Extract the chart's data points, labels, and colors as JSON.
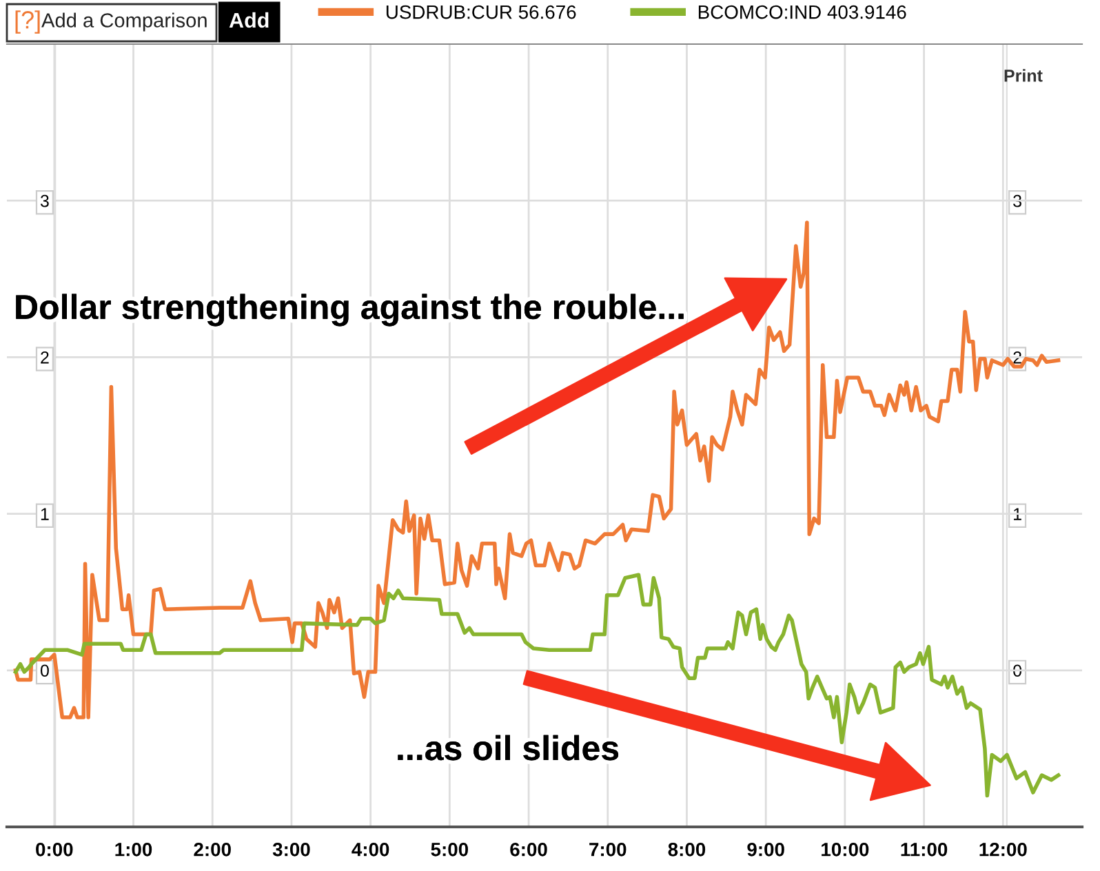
{
  "chart_data": {
    "type": "line",
    "annotations": [
      "[?]",
      "Add a Comparison",
      "Add",
      "Print",
      "Dollar strengthening against the rouble...",
      "...as oil slides"
    ],
    "series": [
      {
        "name": "USDRUB:CUR 56.676",
        "color": "#ef7a36",
        "x": [
          -0.49,
          -0.46,
          -0.3,
          -0.29,
          -0.06,
          0.0,
          0.1,
          0.2,
          0.25,
          0.29,
          0.37,
          0.39,
          0.43,
          0.48,
          0.57,
          0.67,
          0.72,
          0.78,
          0.86,
          0.92,
          0.94,
          1.0,
          1.22,
          1.26,
          1.34,
          1.4,
          2.09,
          2.38,
          2.48,
          2.54,
          2.61,
          2.96,
          3.01,
          3.04,
          3.13,
          3.19,
          3.3,
          3.34,
          3.39,
          3.45,
          3.48,
          3.54,
          3.59,
          3.64,
          3.74,
          3.79,
          3.86,
          3.92,
          3.97,
          4.06,
          4.1,
          4.17,
          4.28,
          4.35,
          4.41,
          4.45,
          4.49,
          4.55,
          4.58,
          4.63,
          4.68,
          4.73,
          4.78,
          4.87,
          4.94,
          5.06,
          5.1,
          5.15,
          5.22,
          5.28,
          5.36,
          5.41,
          5.57,
          5.59,
          5.62,
          5.7,
          5.76,
          5.8,
          5.91,
          5.97,
          6.03,
          6.09,
          6.2,
          6.26,
          6.38,
          6.43,
          6.52,
          6.58,
          6.64,
          6.72,
          6.84,
          6.96,
          7.07,
          7.19,
          7.23,
          7.3,
          7.51,
          7.57,
          7.65,
          7.71,
          7.8,
          7.84,
          7.88,
          7.94,
          8.0,
          8.12,
          8.17,
          8.22,
          8.28,
          8.32,
          8.38,
          8.45,
          8.55,
          8.58,
          8.64,
          8.7,
          8.75,
          8.87,
          8.92,
          8.99,
          9.04,
          9.1,
          9.18,
          9.23,
          9.3,
          9.38,
          9.44,
          9.48,
          9.52,
          9.55,
          9.61,
          9.67,
          9.72,
          9.77,
          9.86,
          9.9,
          9.94,
          10.03,
          10.17,
          10.23,
          10.32,
          10.38,
          10.46,
          10.5,
          10.56,
          10.64,
          10.7,
          10.75,
          10.78,
          10.84,
          10.9,
          10.96,
          11.03,
          11.07,
          11.18,
          11.22,
          11.3,
          11.35,
          11.42,
          11.46,
          11.52,
          11.57,
          11.62,
          11.66,
          11.71,
          11.77,
          11.8,
          11.86,
          12.0,
          12.06,
          12.14,
          12.23,
          12.29,
          12.38,
          12.43,
          12.49,
          12.55,
          12.7
        ],
        "values": [
          0.0,
          -0.06,
          -0.06,
          0.07,
          0.07,
          0.1,
          -0.3,
          -0.3,
          -0.24,
          -0.3,
          -0.3,
          0.68,
          -0.3,
          0.61,
          0.32,
          0.32,
          1.81,
          0.78,
          0.39,
          0.39,
          0.48,
          0.23,
          0.23,
          0.51,
          0.52,
          0.39,
          0.4,
          0.4,
          0.57,
          0.43,
          0.32,
          0.33,
          0.18,
          0.3,
          0.3,
          0.2,
          0.15,
          0.43,
          0.37,
          0.27,
          0.45,
          0.37,
          0.46,
          0.27,
          0.32,
          -0.02,
          -0.01,
          -0.17,
          -0.01,
          -0.01,
          0.54,
          0.43,
          0.96,
          0.9,
          0.88,
          1.08,
          0.89,
          0.99,
          0.49,
          0.97,
          0.84,
          0.99,
          0.83,
          0.83,
          0.55,
          0.56,
          0.81,
          0.64,
          0.54,
          0.73,
          0.65,
          0.81,
          0.81,
          0.55,
          0.65,
          0.46,
          0.87,
          0.75,
          0.73,
          0.81,
          0.83,
          0.67,
          0.67,
          0.81,
          0.64,
          0.75,
          0.74,
          0.65,
          0.67,
          0.83,
          0.81,
          0.87,
          0.87,
          0.93,
          0.83,
          0.9,
          0.89,
          1.12,
          1.11,
          0.97,
          1.03,
          1.78,
          1.57,
          1.66,
          1.44,
          1.51,
          1.34,
          1.43,
          1.21,
          1.49,
          1.44,
          1.41,
          1.62,
          1.78,
          1.66,
          1.57,
          1.76,
          1.7,
          1.92,
          1.87,
          2.19,
          2.11,
          2.16,
          2.04,
          2.08,
          2.71,
          2.45,
          2.54,
          2.86,
          0.87,
          0.97,
          0.94,
          1.95,
          1.49,
          1.49,
          1.85,
          1.65,
          1.87,
          1.87,
          1.78,
          1.78,
          1.69,
          1.69,
          1.63,
          1.76,
          1.66,
          1.82,
          1.76,
          1.84,
          1.66,
          1.81,
          1.66,
          1.69,
          1.62,
          1.59,
          1.72,
          1.72,
          1.92,
          1.92,
          1.78,
          2.29,
          2.1,
          2.1,
          1.79,
          1.99,
          1.99,
          1.87,
          1.98,
          1.95,
          1.99,
          1.94,
          1.94,
          1.99,
          1.98,
          1.95,
          2.01,
          1.97,
          1.98
        ]
      },
      {
        "name": "BCOMCO:IND 403.9146",
        "color": "#89b42f",
        "x": [
          -0.49,
          -0.43,
          -0.38,
          -0.32,
          -0.29,
          -0.12,
          0.17,
          0.35,
          0.38,
          0.84,
          0.87,
          1.1,
          1.16,
          1.22,
          1.28,
          2.09,
          2.14,
          3.13,
          3.16,
          3.83,
          3.88,
          4.0,
          4.06,
          4.17,
          4.23,
          4.29,
          4.35,
          4.41,
          4.87,
          4.9,
          5.1,
          5.19,
          5.25,
          5.3,
          5.91,
          5.96,
          6.06,
          6.26,
          6.78,
          6.81,
          6.96,
          6.99,
          7.13,
          7.22,
          7.39,
          7.45,
          7.54,
          7.58,
          7.65,
          7.68,
          7.77,
          7.83,
          7.91,
          7.94,
          8.03,
          8.1,
          8.14,
          8.23,
          8.26,
          8.49,
          8.52,
          8.58,
          8.65,
          8.7,
          8.75,
          8.81,
          8.88,
          8.93,
          8.96,
          9.01,
          9.07,
          9.12,
          9.16,
          9.22,
          9.29,
          9.33,
          9.39,
          9.45,
          9.51,
          9.54,
          9.59,
          9.65,
          9.71,
          9.77,
          9.81,
          9.86,
          9.9,
          9.96,
          10.02,
          10.06,
          10.12,
          10.17,
          10.23,
          10.32,
          10.38,
          10.45,
          10.61,
          10.64,
          10.7,
          10.75,
          10.81,
          10.9,
          10.95,
          10.99,
          11.06,
          11.1,
          11.22,
          11.26,
          11.3,
          11.36,
          11.42,
          11.48,
          11.54,
          11.59,
          11.71,
          11.77,
          11.8,
          11.86,
          11.97,
          12.05,
          12.17,
          12.28,
          12.38,
          12.49,
          12.61,
          12.7
        ],
        "values": [
          -0.01,
          0.04,
          -0.01,
          0.02,
          0.04,
          0.13,
          0.13,
          0.1,
          0.17,
          0.17,
          0.13,
          0.13,
          0.23,
          0.23,
          0.11,
          0.11,
          0.13,
          0.13,
          0.3,
          0.29,
          0.33,
          0.33,
          0.3,
          0.32,
          0.49,
          0.46,
          0.51,
          0.46,
          0.45,
          0.36,
          0.36,
          0.24,
          0.27,
          0.23,
          0.23,
          0.18,
          0.14,
          0.13,
          0.13,
          0.23,
          0.23,
          0.48,
          0.48,
          0.59,
          0.61,
          0.42,
          0.42,
          0.59,
          0.46,
          0.21,
          0.2,
          0.15,
          0.14,
          0.02,
          -0.05,
          -0.05,
          0.08,
          0.08,
          0.14,
          0.14,
          0.18,
          0.14,
          0.37,
          0.35,
          0.23,
          0.37,
          0.39,
          0.2,
          0.29,
          0.2,
          0.15,
          0.13,
          0.18,
          0.23,
          0.35,
          0.32,
          0.18,
          0.04,
          -0.01,
          -0.18,
          -0.11,
          -0.04,
          -0.11,
          -0.18,
          -0.17,
          -0.3,
          -0.17,
          -0.46,
          -0.27,
          -0.09,
          -0.17,
          -0.27,
          -0.21,
          -0.09,
          -0.11,
          -0.27,
          -0.24,
          0.02,
          0.05,
          -0.01,
          0.02,
          0.04,
          0.11,
          0.04,
          0.15,
          -0.06,
          -0.09,
          -0.04,
          -0.11,
          -0.04,
          -0.15,
          -0.11,
          -0.24,
          -0.21,
          -0.25,
          -0.5,
          -0.8,
          -0.54,
          -0.58,
          -0.54,
          -0.69,
          -0.65,
          -0.78,
          -0.67,
          -0.7,
          -0.67
        ]
      }
    ],
    "xlim": [
      -0.6,
      13.0
    ],
    "xticks": [
      {
        "value": 0,
        "label": "0:00"
      },
      {
        "value": 1,
        "label": "1:00"
      },
      {
        "value": 2,
        "label": "2:00"
      },
      {
        "value": 3,
        "label": "3:00"
      },
      {
        "value": 4,
        "label": "4:00"
      },
      {
        "value": 5,
        "label": "5:00"
      },
      {
        "value": 6,
        "label": "6:00"
      },
      {
        "value": 7,
        "label": "7:00"
      },
      {
        "value": 8,
        "label": "8:00"
      },
      {
        "value": 9,
        "label": "9:00"
      },
      {
        "value": 10,
        "label": "10:00"
      },
      {
        "value": 11,
        "label": "11:00"
      },
      {
        "value": 12,
        "label": "12:00"
      }
    ],
    "ylim": [
      -1.0,
      4.0
    ],
    "yticks": [
      0,
      1,
      2,
      3
    ],
    "y2lim": [
      -1.0,
      4.0
    ],
    "y2ticks": [
      0,
      1,
      2,
      3
    ],
    "grid": true,
    "legend": "top",
    "marker": "none",
    "line_style": "solid"
  }
}
